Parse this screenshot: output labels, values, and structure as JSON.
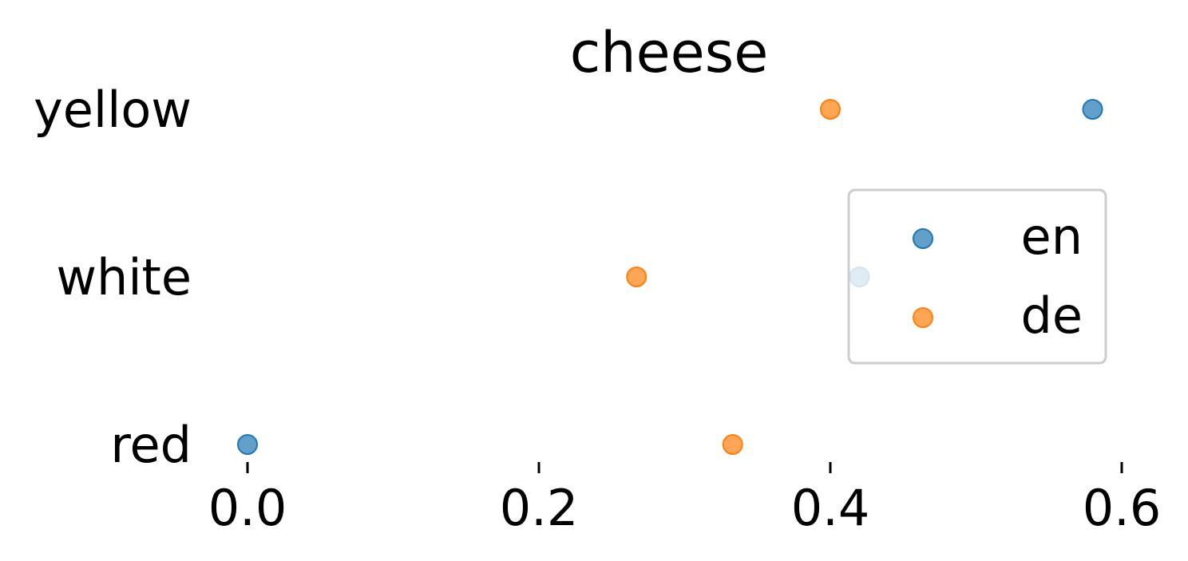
{
  "chart_data": {
    "type": "scatter",
    "title": "cheese",
    "xlabel": "",
    "ylabel": "",
    "categories": [
      "red",
      "white",
      "yellow"
    ],
    "xlim": [
      -0.03,
      0.63
    ],
    "xticks": [
      "0.0",
      "0.2",
      "0.4",
      "0.6"
    ],
    "xtick_values": [
      0.0,
      0.2,
      0.4,
      0.6
    ],
    "grid": false,
    "legend": "right",
    "series": [
      {
        "name": "en",
        "color": "#1f77b4",
        "values": [
          0.0,
          0.42,
          0.58
        ]
      },
      {
        "name": "de",
        "color": "#ff7f0e",
        "values": [
          0.333,
          0.267,
          0.4
        ]
      }
    ]
  }
}
